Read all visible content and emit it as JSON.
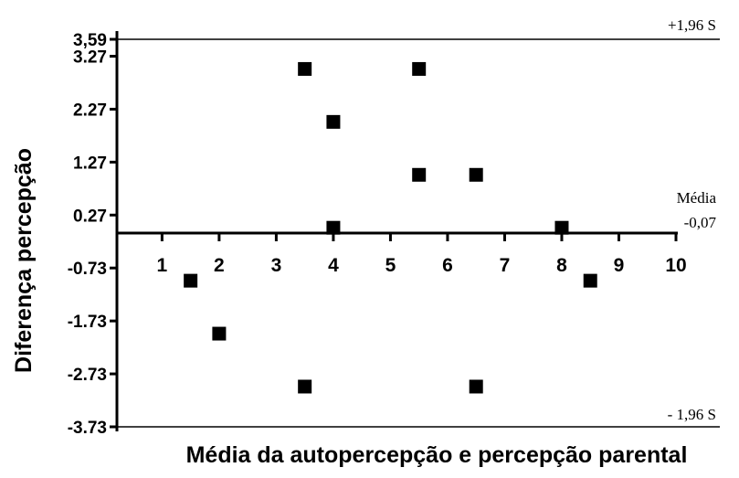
{
  "chart_data": {
    "type": "scatter",
    "xlabel": "Média da autopercepção e percepção parental",
    "ylabel": "Diferença percepção",
    "x_ticks": [
      "1",
      "2",
      "3",
      "4",
      "5",
      "6",
      "7",
      "8",
      "9",
      "10"
    ],
    "y_ticks": [
      "3,59",
      "3.27",
      "2.27",
      "1.27",
      "0.27",
      "-0.73",
      "-1.73",
      "-2.73",
      "-3.73"
    ],
    "y_tick_values": [
      3.59,
      3.27,
      2.27,
      1.27,
      0.27,
      -0.73,
      -1.73,
      -2.73,
      -3.73
    ],
    "xlim": [
      0.05,
      10
    ],
    "ylim": [
      -3.73,
      3.59
    ],
    "grid": false,
    "points": [
      {
        "x": 1.5,
        "y": -0.97
      },
      {
        "x": 2,
        "y": -1.97
      },
      {
        "x": 3.5,
        "y": 3.03
      },
      {
        "x": 3.5,
        "y": -2.97
      },
      {
        "x": 4,
        "y": 2.03
      },
      {
        "x": 4,
        "y": 0.03
      },
      {
        "x": 5.5,
        "y": 3.03
      },
      {
        "x": 5.5,
        "y": 1.03
      },
      {
        "x": 6.5,
        "y": 1.03
      },
      {
        "x": 6.5,
        "y": -2.97
      },
      {
        "x": 8,
        "y": 0.03
      },
      {
        "x": 8.5,
        "y": -0.97
      }
    ],
    "reference_lines": [
      {
        "name": "+1,96 S",
        "y": 3.59
      },
      {
        "name": "Média",
        "value_label": "-0,07",
        "y": -0.07
      },
      {
        "name": "- 1,96 S",
        "y": -3.73
      }
    ]
  }
}
